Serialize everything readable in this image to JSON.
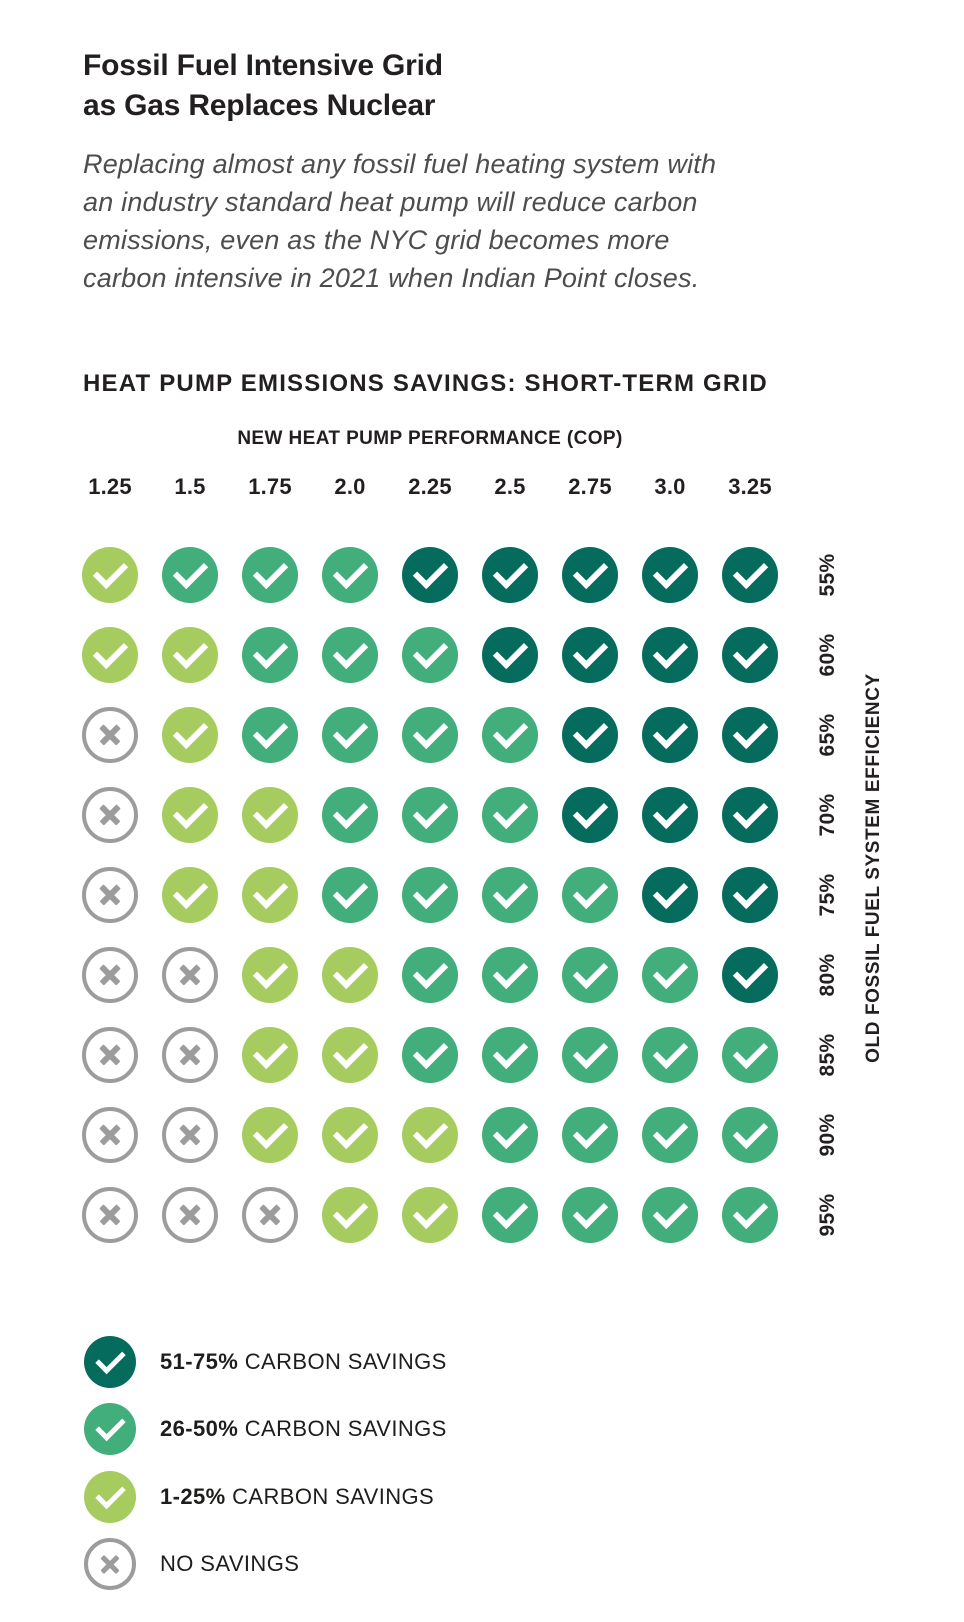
{
  "header": {
    "title_lines": [
      "Fossil Fuel Intensive Grid",
      "as Gas Replaces Nuclear"
    ],
    "subtitle_lines": [
      "Replacing almost any fossil fuel heating system with",
      "an industry standard heat pump will reduce carbon",
      "emissions, even as the NYC grid becomes more",
      "carbon intensive in 2021 when Indian Point closes."
    ]
  },
  "section_title": "HEAT PUMP EMISSIONS SAVINGS: SHORT-TERM GRID",
  "chart_data": {
    "type": "heatmap",
    "x_axis_label": "NEW HEAT PUMP PERFORMANCE (COP)",
    "y_axis_label": "OLD FOSSIL FUEL SYSTEM EFFICIENCY",
    "columns": [
      "1.25",
      "1.5",
      "1.75",
      "2.0",
      "2.25",
      "2.5",
      "2.75",
      "3.0",
      "3.25"
    ],
    "rows": [
      "55%",
      "60%",
      "65%",
      "70%",
      "75%",
      "80%",
      "85%",
      "90%",
      "95%"
    ],
    "category_meaning": {
      "D": "51-75% carbon savings",
      "M": "26-50% carbon savings",
      "L": "1-25% carbon savings",
      "X": "no savings"
    },
    "cell_categories_by_row": [
      [
        "L",
        "M",
        "M",
        "M",
        "D",
        "D",
        "D",
        "D",
        "D"
      ],
      [
        "L",
        "L",
        "M",
        "M",
        "M",
        "D",
        "D",
        "D",
        "D"
      ],
      [
        "X",
        "L",
        "M",
        "M",
        "M",
        "M",
        "D",
        "D",
        "D"
      ],
      [
        "X",
        "L",
        "L",
        "M",
        "M",
        "M",
        "D",
        "D",
        "D"
      ],
      [
        "X",
        "L",
        "L",
        "M",
        "M",
        "M",
        "M",
        "D",
        "D"
      ],
      [
        "X",
        "X",
        "L",
        "L",
        "M",
        "M",
        "M",
        "M",
        "D"
      ],
      [
        "X",
        "X",
        "L",
        "L",
        "M",
        "M",
        "M",
        "M",
        "M"
      ],
      [
        "X",
        "X",
        "L",
        "L",
        "L",
        "M",
        "M",
        "M",
        "M"
      ],
      [
        "X",
        "X",
        "X",
        "L",
        "L",
        "M",
        "M",
        "M",
        "M"
      ]
    ],
    "legend_items": [
      {
        "category": "D",
        "range_label": "51-75%",
        "text": "CARBON SAVINGS",
        "mark": "check",
        "color": "#056b5d"
      },
      {
        "category": "M",
        "range_label": "26-50%",
        "text": "CARBON SAVINGS",
        "mark": "check",
        "color": "#42ae7b"
      },
      {
        "category": "L",
        "range_label": "1-25%",
        "text": "CARBON SAVINGS",
        "mark": "check",
        "color": "#a6cc5f"
      },
      {
        "category": "X",
        "range_label": "",
        "text": "NO SAVINGS",
        "mark": "x",
        "color": "#ffffff"
      }
    ]
  },
  "colors": {
    "dark_teal": "#056b5d",
    "medium_green": "#42ae7b",
    "light_green": "#a6cc5f",
    "no_savings_gray": "#9c9c9c",
    "heading_text": "#231f20",
    "subtitle_text": "#4d4d4d",
    "background": "#ffffff"
  }
}
